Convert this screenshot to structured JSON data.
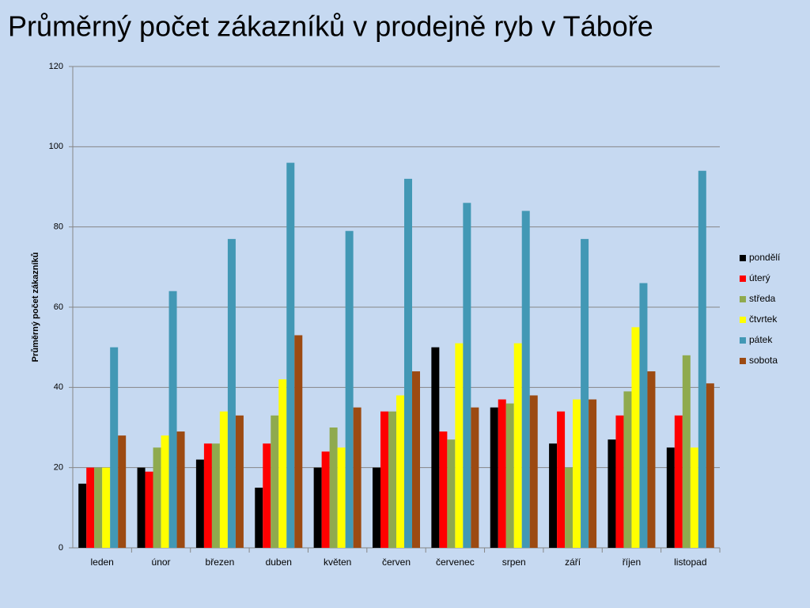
{
  "chart_data": {
    "type": "bar",
    "title": "Průměrný počet zákazníků v prodejně ryb v Táboře",
    "y_label": "Průměrný počet zákazníků",
    "categories": [
      "leden",
      "únor",
      "březen",
      "duben",
      "květen",
      "červen",
      "červenec",
      "srpen",
      "září",
      "říjen",
      "listopad"
    ],
    "series": [
      {
        "name": "pondělí",
        "color": "#000000",
        "values": [
          16,
          20,
          22,
          15,
          20,
          20,
          50,
          35,
          26,
          27,
          25
        ]
      },
      {
        "name": "úterý",
        "color": "#ff0000",
        "values": [
          20,
          19,
          26,
          26,
          24,
          34,
          29,
          37,
          34,
          33,
          33
        ]
      },
      {
        "name": "středa",
        "color": "#8faa4e",
        "values": [
          20,
          25,
          26,
          33,
          30,
          34,
          27,
          36,
          20,
          39,
          48
        ]
      },
      {
        "name": "čtvrtek",
        "color": "#ffff00",
        "values": [
          20,
          28,
          34,
          42,
          25,
          38,
          51,
          51,
          37,
          55,
          25
        ]
      },
      {
        "name": "pátek",
        "color": "#4298b5",
        "values": [
          50,
          64,
          77,
          96,
          79,
          92,
          86,
          84,
          77,
          66,
          94
        ]
      },
      {
        "name": "sobota",
        "color": "#9c4a12",
        "values": [
          28,
          29,
          33,
          53,
          35,
          44,
          35,
          38,
          37,
          44,
          41
        ]
      }
    ],
    "ylim": [
      0,
      120
    ],
    "yticks": [
      0,
      20,
      40,
      60,
      80,
      100,
      120
    ],
    "grid": true,
    "legend": "right"
  }
}
